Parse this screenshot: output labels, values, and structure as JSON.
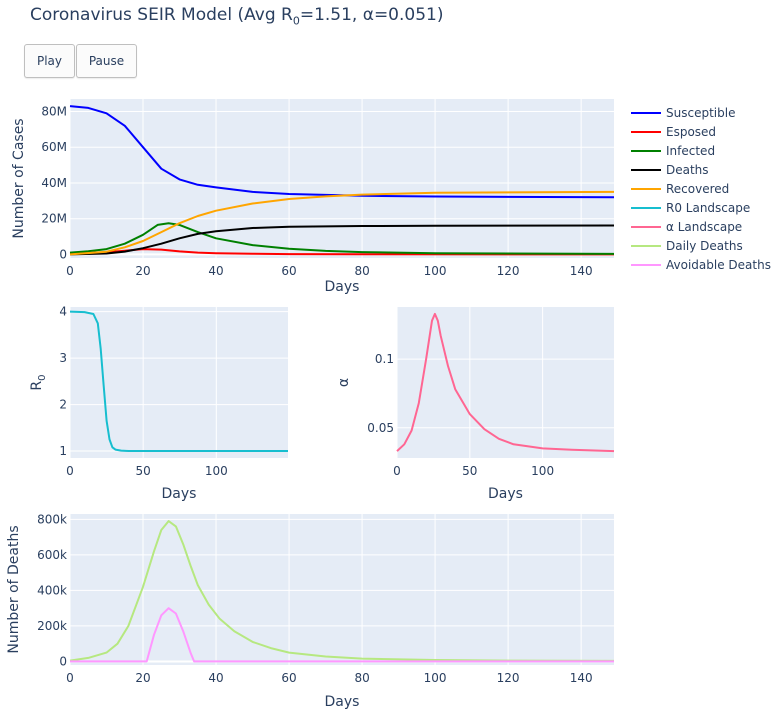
{
  "title_parts": {
    "pre": "Coronavirus SEIR Model (Avg R",
    "sub": "0",
    "post": "=1.51, α=0.051)"
  },
  "buttons": {
    "play": "Play",
    "pause": "Pause"
  },
  "colors": {
    "plot_bg": "#e5ecf6",
    "grid": "#ffffff",
    "Susceptible": "#0000ff",
    "Esposed": "#ff0000",
    "Infected": "#008000",
    "Deaths": "#000000",
    "Recovered": "#ffa500",
    "R0 Landscape": "#17becf",
    "α Landscape": "#ff6692",
    "Daily Deaths": "#b6e880",
    "Avoidable Deaths": "#ff97ff"
  },
  "legend": {
    "placement": "right",
    "entries": [
      "Susceptible",
      "Esposed",
      "Infected",
      "Deaths",
      "Recovered",
      "R0 Landscape",
      "α Landscape",
      "Daily Deaths",
      "Avoidable Deaths"
    ]
  },
  "chart_data": [
    {
      "type": "line",
      "xlabel": "Days",
      "ylabel": "Number of Cases",
      "xlim": [
        0,
        149
      ],
      "ylim": [
        -2000000,
        87000000
      ],
      "xticks": [
        0,
        20,
        40,
        60,
        80,
        100,
        120,
        140
      ],
      "xticklabels": [
        "0",
        "20",
        "40",
        "60",
        "80",
        "100",
        "120",
        "140"
      ],
      "yticks": [
        0,
        20000000,
        40000000,
        60000000,
        80000000
      ],
      "yticklabels": [
        "0",
        "20M",
        "40M",
        "60M",
        "80M"
      ],
      "grid": true,
      "series": [
        {
          "name": "Susceptible",
          "x": [
            0,
            5,
            10,
            15,
            20,
            25,
            30,
            35,
            40,
            50,
            60,
            80,
            100,
            149
          ],
          "values": [
            83000000,
            82000000,
            79000000,
            72000000,
            60000000,
            48000000,
            42000000,
            39000000,
            37500000,
            35000000,
            33800000,
            32800000,
            32400000,
            32000000
          ]
        },
        {
          "name": "Esposed",
          "x": [
            0,
            5,
            10,
            15,
            20,
            25,
            30,
            35,
            40,
            50,
            60,
            80,
            149
          ],
          "values": [
            500000,
            800000,
            1300000,
            2100000,
            3000000,
            2700000,
            1700000,
            1000000,
            700000,
            400000,
            200000,
            80000,
            20000
          ]
        },
        {
          "name": "Infected",
          "x": [
            0,
            5,
            10,
            15,
            20,
            24,
            27,
            30,
            35,
            40,
            50,
            60,
            70,
            80,
            100,
            149
          ],
          "values": [
            1000000,
            1800000,
            3000000,
            6000000,
            11000000,
            16500000,
            17500000,
            16500000,
            12500000,
            9000000,
            5200000,
            3200000,
            2000000,
            1300000,
            700000,
            300000
          ]
        },
        {
          "name": "Deaths",
          "x": [
            0,
            10,
            15,
            20,
            25,
            30,
            35,
            40,
            50,
            60,
            80,
            100,
            149
          ],
          "values": [
            0,
            500000,
            1600000,
            3500000,
            6000000,
            9000000,
            11500000,
            13000000,
            14800000,
            15500000,
            15900000,
            16000000,
            16200000
          ]
        },
        {
          "name": "Recovered",
          "x": [
            0,
            10,
            15,
            20,
            25,
            30,
            35,
            40,
            50,
            60,
            70,
            80,
            100,
            149
          ],
          "values": [
            0,
            1500000,
            4000000,
            7500000,
            12500000,
            17500000,
            21500000,
            24500000,
            28500000,
            31000000,
            32500000,
            33500000,
            34500000,
            35000000
          ]
        }
      ]
    },
    {
      "type": "line",
      "xlabel": "Days",
      "ylabel": "R0",
      "xlim": [
        0,
        149
      ],
      "ylim": [
        0.85,
        4.1
      ],
      "xticks": [
        0,
        50,
        100
      ],
      "xticklabels": [
        "0",
        "50",
        "100"
      ],
      "yticks": [
        1,
        2,
        3,
        4
      ],
      "yticklabels": [
        "1",
        "2",
        "3",
        "4"
      ],
      "grid": true,
      "series": [
        {
          "name": "R0 Landscape",
          "x": [
            0,
            10,
            16,
            19,
            21,
            23,
            25,
            27,
            29,
            31,
            35,
            40,
            149
          ],
          "values": [
            4.0,
            3.99,
            3.95,
            3.75,
            3.2,
            2.4,
            1.65,
            1.25,
            1.08,
            1.03,
            1.01,
            1.0,
            1.0
          ]
        }
      ]
    },
    {
      "type": "line",
      "xlabel": "Days",
      "ylabel": "α",
      "xlim": [
        0,
        149
      ],
      "ylim": [
        0.028,
        0.138
      ],
      "xticks": [
        0,
        50,
        100
      ],
      "xticklabels": [
        "0",
        "50",
        "100"
      ],
      "yticks": [
        0.05,
        0.1
      ],
      "yticklabels": [
        "0.05",
        "0.1"
      ],
      "grid": true,
      "series": [
        {
          "name": "α Landscape",
          "x": [
            0,
            5,
            10,
            15,
            20,
            24,
            26,
            28,
            30,
            35,
            40,
            50,
            60,
            70,
            80,
            100,
            120,
            149
          ],
          "values": [
            0.033,
            0.038,
            0.048,
            0.068,
            0.1,
            0.128,
            0.133,
            0.128,
            0.117,
            0.095,
            0.078,
            0.06,
            0.049,
            0.042,
            0.038,
            0.035,
            0.034,
            0.033
          ]
        }
      ]
    },
    {
      "type": "line",
      "xlabel": "Days",
      "ylabel": "Number of Deaths",
      "xlim": [
        0,
        149
      ],
      "ylim": [
        -20000,
        830000
      ],
      "xticks": [
        0,
        20,
        40,
        60,
        80,
        100,
        120,
        140
      ],
      "xticklabels": [
        "0",
        "20",
        "40",
        "60",
        "80",
        "100",
        "120",
        "140"
      ],
      "yticks": [
        0,
        200000,
        400000,
        600000,
        800000
      ],
      "yticklabels": [
        "0",
        "200k",
        "400k",
        "600k",
        "800k"
      ],
      "grid": true,
      "series": [
        {
          "name": "Daily Deaths",
          "x": [
            0,
            5,
            10,
            13,
            16,
            20,
            23,
            25,
            27,
            29,
            31,
            33,
            35,
            38,
            41,
            45,
            50,
            55,
            60,
            70,
            80,
            100,
            120,
            149
          ],
          "values": [
            5000,
            20000,
            50000,
            100000,
            200000,
            420000,
            620000,
            740000,
            790000,
            760000,
            660000,
            540000,
            430000,
            320000,
            240000,
            170000,
            110000,
            75000,
            50000,
            28000,
            16000,
            8000,
            5000,
            3000
          ]
        },
        {
          "name": "Avoidable Deaths",
          "x": [
            0,
            21,
            23,
            25,
            27,
            29,
            31,
            33,
            34,
            149
          ],
          "values": [
            0,
            0,
            150000,
            260000,
            300000,
            270000,
            170000,
            50000,
            0,
            0
          ]
        }
      ]
    }
  ]
}
